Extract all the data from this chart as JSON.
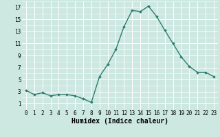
{
  "x": [
    0,
    1,
    2,
    3,
    4,
    5,
    6,
    7,
    8,
    9,
    10,
    11,
    12,
    13,
    14,
    15,
    16,
    17,
    18,
    19,
    20,
    21,
    22,
    23
  ],
  "y": [
    3.2,
    2.5,
    2.8,
    2.3,
    2.5,
    2.5,
    2.3,
    1.8,
    1.2,
    5.5,
    7.5,
    10.0,
    13.8,
    16.5,
    16.3,
    17.2,
    15.5,
    13.2,
    11.0,
    8.8,
    7.2,
    6.2,
    6.2,
    5.5
  ],
  "line_color": "#2d7d6e",
  "marker": "D",
  "marker_size": 1.8,
  "line_width": 1.0,
  "xlabel": "Humidex (Indice chaleur)",
  "xlabel_fontsize": 7,
  "xlim": [
    -0.5,
    23.5
  ],
  "ylim": [
    0.0,
    18.0
  ],
  "yticks": [
    1,
    3,
    5,
    7,
    9,
    11,
    13,
    15,
    17
  ],
  "xticks": [
    0,
    1,
    2,
    3,
    4,
    5,
    6,
    7,
    8,
    9,
    10,
    11,
    12,
    13,
    14,
    15,
    16,
    17,
    18,
    19,
    20,
    21,
    22,
    23
  ],
  "xtick_labels": [
    "0",
    "1",
    "2",
    "3",
    "4",
    "5",
    "6",
    "7",
    "8",
    "9",
    "10",
    "11",
    "12",
    "13",
    "14",
    "15",
    "16",
    "17",
    "18",
    "19",
    "20",
    "21",
    "22",
    "23"
  ],
  "bg_color": "#cce8e0",
  "grid_color": "#ffffff",
  "tick_fontsize": 5.5,
  "xlabel_fontweight": "bold"
}
